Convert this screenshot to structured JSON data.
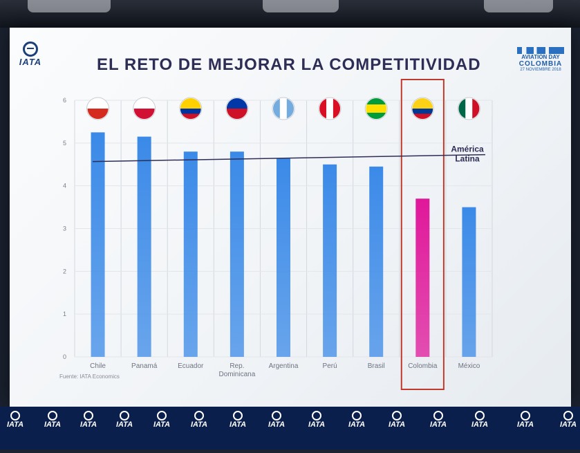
{
  "slide": {
    "title": "EL RETO DE MEJORAR LA COMPETITIVIDAD",
    "logo_text": "IATA",
    "event_logo": {
      "line1": "AVIATION DAY",
      "line2": "COLOMBIA",
      "line3": "27 NOVIEMBRE 2018"
    },
    "source": "Fuente: IATA Economics",
    "footer_logo_text": "IATA"
  },
  "chart_data": {
    "type": "bar",
    "title": "EL RETO DE MEJORAR LA COMPETITIVIDAD",
    "xlabel": "",
    "ylabel": "",
    "ylim": [
      0,
      6
    ],
    "yticks": [
      "0",
      "1",
      "2",
      "3",
      "4",
      "5",
      "6"
    ],
    "categories": [
      "Chile",
      "Panamá",
      "Ecuador",
      "Rep. Dominicana",
      "Argentina",
      "Perú",
      "Brasil",
      "Colombia",
      "México"
    ],
    "values": [
      5.25,
      5.15,
      4.8,
      4.8,
      4.65,
      4.5,
      4.45,
      3.7,
      3.5
    ],
    "bar_colors": [
      "#3b8ae8",
      "#3b8ae8",
      "#3b8ae8",
      "#3b8ae8",
      "#3b8ae8",
      "#3b8ae8",
      "#3b8ae8",
      "#e0189a",
      "#3b8ae8"
    ],
    "highlight": "Colombia",
    "reference_line": {
      "label": "América Latina",
      "value": 4.6
    },
    "grid": true
  }
}
